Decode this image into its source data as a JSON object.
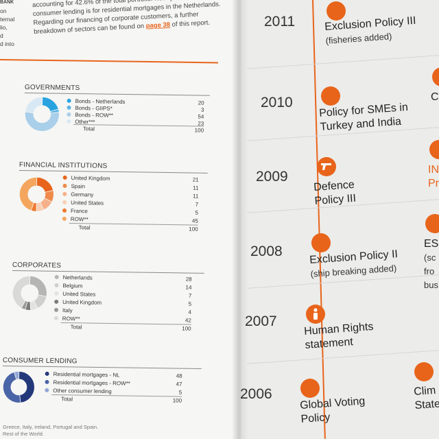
{
  "intro": {
    "l1": "accounting for 42.6% of the total portfolio. Nearly",
    "l2": "consumer lending is for residential mortgages in the Netherlands.",
    "l3": "Regarding our financing of corporate customers, a further",
    "l4a": "breakdown of sectors can be found on ",
    "l4link": "page 38",
    "l4b": " of this report.",
    "m1": "BANK",
    "m2": "on",
    "m3": "ternal",
    "m4": "lio,",
    "m5": "d",
    "m6": "d into"
  },
  "sections": [
    {
      "title": "GOVERNMENTS",
      "items": [
        {
          "label": "Bonds - Netherlands",
          "value": "20",
          "color": "#29a3df"
        },
        {
          "label": "Bonds - GIIPS*",
          "value": "3",
          "color": "#5bb5e4"
        },
        {
          "label": "Bonds - ROW**",
          "value": "54",
          "color": "#a9cfea"
        },
        {
          "label": "Other***",
          "value": "23",
          "color": "#d8e8f4"
        }
      ],
      "total_label": "Total",
      "total_value": "100"
    },
    {
      "title": "FINANCIAL INSTITUTIONS",
      "items": [
        {
          "label": "United Kingdom",
          "value": "21",
          "color": "#e8641b"
        },
        {
          "label": "Spain",
          "value": "11",
          "color": "#f08a4b"
        },
        {
          "label": "Germany",
          "value": "11",
          "color": "#f5b08a"
        },
        {
          "label": "United States",
          "value": "7",
          "color": "#f8cfb4"
        },
        {
          "label": "France",
          "value": "5",
          "color": "#ef7a2f"
        },
        {
          "label": "ROW**",
          "value": "45",
          "color": "#f4a65e"
        }
      ],
      "total_label": "Total",
      "total_value": "100"
    },
    {
      "title": "CORPORATES",
      "items": [
        {
          "label": "Netherlands",
          "value": "28",
          "color": "#b5b5b3"
        },
        {
          "label": "Belgium",
          "value": "14",
          "color": "#cfcfcd"
        },
        {
          "label": "United States",
          "value": "7",
          "color": "#e2e2e0"
        },
        {
          "label": "United Kingdom",
          "value": "5",
          "color": "#7b7b79"
        },
        {
          "label": "Italy",
          "value": "4",
          "color": "#9a9a98"
        },
        {
          "label": "ROW**",
          "value": "42",
          "color": "#d9d9d7"
        }
      ],
      "total_label": "Total",
      "total_value": "100"
    },
    {
      "title": "CONSUMER LENDING",
      "items": [
        {
          "label": "Residential mortgages - NL",
          "value": "48",
          "color": "#23387a"
        },
        {
          "label": "Residential mortgages - ROW**",
          "value": "47",
          "color": "#4a64a8"
        },
        {
          "label": "Other consumer lending",
          "value": "5",
          "color": "#93a8d6"
        }
      ],
      "total_label": "Total",
      "total_value": "100"
    }
  ],
  "footnotes": {
    "f1": "Greece, Italy, Ireland, Portugal and Spain.",
    "f2": "Rest of the World."
  },
  "timeline": [
    {
      "year": "2011",
      "title": "Exclusion Policy III",
      "sub": "(fisheries added)",
      "icon": "dot"
    },
    {
      "year": "2010",
      "title": "Policy for SMEs in",
      "title2": "Turkey and India",
      "icon": "dot"
    },
    {
      "year": "2009",
      "title": "Defence",
      "title2": "Policy III",
      "icon": "gun-icon"
    },
    {
      "year": "2008",
      "title": "Exclusion Policy II",
      "sub": "(ship breaking added)",
      "icon": "dot"
    },
    {
      "year": "2007",
      "title": "Human Rights",
      "title2": "statement",
      "icon": "person-icon"
    },
    {
      "year": "2006",
      "title": "Global Voting",
      "title2": "Policy",
      "icon": "dot"
    }
  ],
  "right_edge": {
    "c1": "C",
    "c2": "IN",
    "c3": "Pr",
    "c4": "ES",
    "c5": "(sc",
    "c6": "fro",
    "c7": "bus",
    "c8": "Clim",
    "c9": "State"
  },
  "colors": {
    "accent": "#e8641b"
  }
}
